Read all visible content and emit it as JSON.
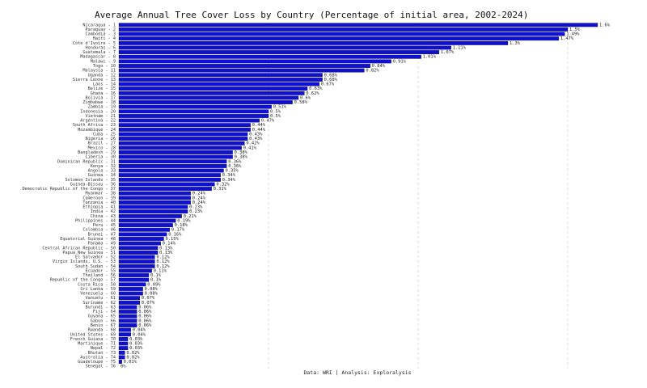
{
  "chart_data": {
    "type": "bar",
    "orientation": "horizontal",
    "title": "Average Annual Tree Cover Loss by Country (Percentage of initial area, 2002-2024)",
    "source": "Data: WRI | Analysis: Exploralysis",
    "color": "#1010d0",
    "xlim": [
      0,
      1.6
    ],
    "xgrid": [
      0.5,
      1,
      1.5
    ],
    "categories": [
      "Nicaragua - 1",
      "Paraguay - 2",
      "Cambodia - 3",
      "Haiti - 4",
      "Côte d'Ivoire - 5",
      "Honduras - 6",
      "Guatemala - 7",
      "Madagascar - 8",
      "Malawi - 9",
      "Togo - 10",
      "Malaysia - 11",
      "Uganda - 12",
      "Sierra Leone - 13",
      "Laos - 14",
      "Belize - 15",
      "Ghana - 16",
      "Bolivia - 17",
      "Zimbabwe - 18",
      "Zambia - 19",
      "Indonesia - 20",
      "Vietnam - 21",
      "Argentina - 22",
      "South Africa - 23",
      "Mozambique - 24",
      "Cuba - 25",
      "Nigeria - 26",
      "Brazil - 27",
      "Mexico - 28",
      "Bangladesh - 29",
      "Liberia - 30",
      "Dominican Republic - 31",
      "Kenya - 32",
      "Angola - 33",
      "Guinea - 34",
      "Solomon Islands - 35",
      "Guinea-Bissau - 36",
      "Democratic Republic of the Congo - 37",
      "Myanmar - 38",
      "Cameroon - 39",
      "Tanzania - 40",
      "Ethiopia - 41",
      "India - 42",
      "China - 43",
      "Philippines - 44",
      "Peru - 45",
      "Colombia - 46",
      "Brunei - 47",
      "Equatorial Guinea - 48",
      "Panama - 49",
      "Central African Republic - 50",
      "Papua New Guinea - 51",
      "El Salvador - 52",
      "Virgin Islands, U.S. - 53",
      "South Sudan - 54",
      "Ecuador - 55",
      "Thailand - 56",
      "Republic of the Congo - 57",
      "Costa Rica - 58",
      "Sri Lanka - 59",
      "Venezuela - 60",
      "Vanuatu - 61",
      "Suriname - 62",
      "Burundi - 63",
      "Fiji - 64",
      "Guyana - 65",
      "Gabon - 66",
      "Benin - 67",
      "Rwanda - 68",
      "United States - 69",
      "French Guiana - 70",
      "Martinique - 71",
      "Nepal - 72",
      "Bhutan - 73",
      "Australia - 74",
      "Guadeloupe - 75",
      "Senegal - 76"
    ],
    "values": [
      1.6,
      1.5,
      1.49,
      1.47,
      1.3,
      1.11,
      1.07,
      1.01,
      0.91,
      0.84,
      0.82,
      0.68,
      0.68,
      0.67,
      0.63,
      0.62,
      0.6,
      0.58,
      0.51,
      0.5,
      0.5,
      0.47,
      0.44,
      0.44,
      0.43,
      0.43,
      0.42,
      0.41,
      0.38,
      0.38,
      0.36,
      0.36,
      0.35,
      0.34,
      0.34,
      0.32,
      0.31,
      0.24,
      0.24,
      0.24,
      0.23,
      0.23,
      0.21,
      0.19,
      0.18,
      0.17,
      0.16,
      0.15,
      0.14,
      0.13,
      0.13,
      0.12,
      0.12,
      0.12,
      0.11,
      0.1,
      0.1,
      0.09,
      0.08,
      0.08,
      0.07,
      0.07,
      0.06,
      0.06,
      0.06,
      0.06,
      0.06,
      0.04,
      0.04,
      0.03,
      0.03,
      0.03,
      0.02,
      0.02,
      0.01,
      0
    ],
    "value_labels": [
      "1.6%",
      "1.5%",
      "1.49%",
      "1.47%",
      "1.3%",
      "1.11%",
      "1.07%",
      "1.01%",
      "0.91%",
      "0.84%",
      "0.82%",
      "0.68%",
      "0.68%",
      "0.67%",
      "0.63%",
      "0.62%",
      "0.6%",
      "0.58%",
      "0.51%",
      "0.5%",
      "0.5%",
      "0.47%",
      "0.44%",
      "0.44%",
      "0.43%",
      "0.43%",
      "0.42%",
      "0.41%",
      "0.38%",
      "0.38%",
      "0.36%",
      "0.36%",
      "0.35%",
      "0.34%",
      "0.34%",
      "0.32%",
      "0.31%",
      "0.24%",
      "0.24%",
      "0.24%",
      "0.23%",
      "0.23%",
      "0.21%",
      "0.19%",
      "0.18%",
      "0.17%",
      "0.16%",
      "0.15%",
      "0.14%",
      "0.13%",
      "0.13%",
      "0.12%",
      "0.12%",
      "0.12%",
      "0.11%",
      "0.1%",
      "0.1%",
      "0.09%",
      "0.08%",
      "0.08%",
      "0.07%",
      "0.07%",
      "0.06%",
      "0.06%",
      "0.06%",
      "0.06%",
      "0.06%",
      "0.04%",
      "0.04%",
      "0.03%",
      "0.03%",
      "0.03%",
      "0.02%",
      "0.02%",
      "0.01%",
      "0%"
    ]
  }
}
